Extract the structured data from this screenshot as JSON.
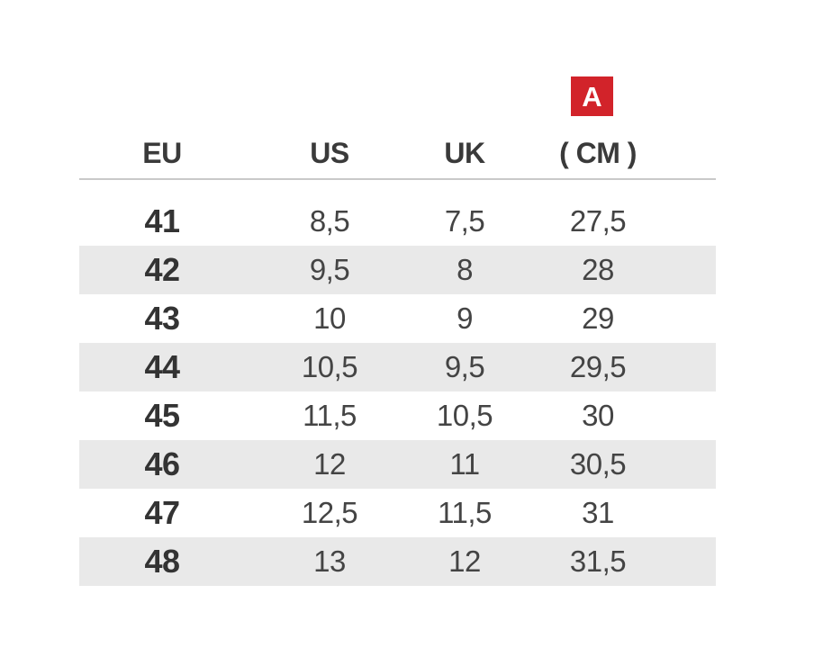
{
  "badge": {
    "label": "A"
  },
  "chart_data": {
    "type": "table",
    "columns": [
      "EU",
      "US",
      "UK",
      "( CM )"
    ],
    "rows": [
      [
        "41",
        "8,5",
        "7,5",
        "27,5"
      ],
      [
        "42",
        "9,5",
        "8",
        "28"
      ],
      [
        "43",
        "10",
        "9",
        "29"
      ],
      [
        "44",
        "10,5",
        "9,5",
        "29,5"
      ],
      [
        "45",
        "11,5",
        "10,5",
        "30"
      ],
      [
        "46",
        "12",
        "11",
        "30,5"
      ],
      [
        "47",
        "12,5",
        "11,5",
        "31"
      ],
      [
        "48",
        "13",
        "12",
        "31,5"
      ]
    ]
  },
  "colors": {
    "badge_red": "#d2232a",
    "row_alt_gray": "#e9e9e9",
    "rule_gray": "#c9c9c9",
    "text_dark": "#3a3a3a"
  }
}
